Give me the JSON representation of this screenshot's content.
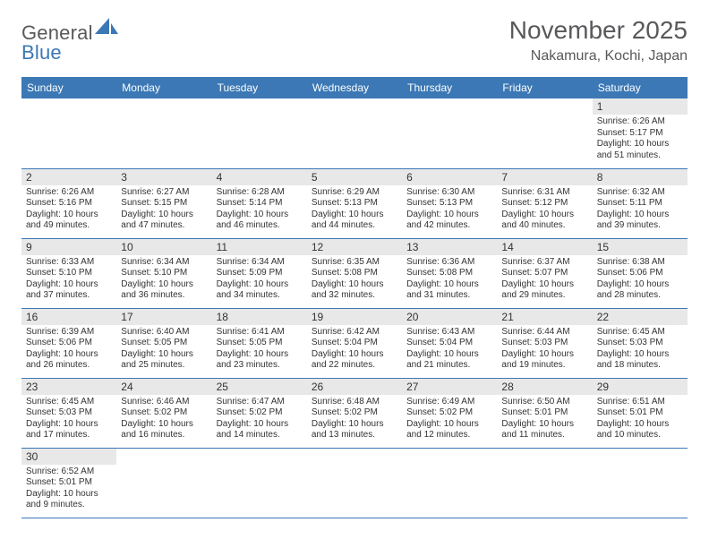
{
  "logo": {
    "part1": "General",
    "part2": "Blue"
  },
  "title": "November 2025",
  "location": "Nakamura, Kochi, Japan",
  "colors": {
    "header_bar": "#3b78b5",
    "daynum_bg": "#e8e8e8",
    "text": "#333333",
    "muted": "#58595b"
  },
  "dayNames": [
    "Sunday",
    "Monday",
    "Tuesday",
    "Wednesday",
    "Thursday",
    "Friday",
    "Saturday"
  ],
  "weeks": [
    [
      null,
      null,
      null,
      null,
      null,
      null,
      {
        "n": "1",
        "sr": "Sunrise: 6:26 AM",
        "ss": "Sunset: 5:17 PM",
        "d1": "Daylight: 10 hours",
        "d2": "and 51 minutes."
      }
    ],
    [
      {
        "n": "2",
        "sr": "Sunrise: 6:26 AM",
        "ss": "Sunset: 5:16 PM",
        "d1": "Daylight: 10 hours",
        "d2": "and 49 minutes."
      },
      {
        "n": "3",
        "sr": "Sunrise: 6:27 AM",
        "ss": "Sunset: 5:15 PM",
        "d1": "Daylight: 10 hours",
        "d2": "and 47 minutes."
      },
      {
        "n": "4",
        "sr": "Sunrise: 6:28 AM",
        "ss": "Sunset: 5:14 PM",
        "d1": "Daylight: 10 hours",
        "d2": "and 46 minutes."
      },
      {
        "n": "5",
        "sr": "Sunrise: 6:29 AM",
        "ss": "Sunset: 5:13 PM",
        "d1": "Daylight: 10 hours",
        "d2": "and 44 minutes."
      },
      {
        "n": "6",
        "sr": "Sunrise: 6:30 AM",
        "ss": "Sunset: 5:13 PM",
        "d1": "Daylight: 10 hours",
        "d2": "and 42 minutes."
      },
      {
        "n": "7",
        "sr": "Sunrise: 6:31 AM",
        "ss": "Sunset: 5:12 PM",
        "d1": "Daylight: 10 hours",
        "d2": "and 40 minutes."
      },
      {
        "n": "8",
        "sr": "Sunrise: 6:32 AM",
        "ss": "Sunset: 5:11 PM",
        "d1": "Daylight: 10 hours",
        "d2": "and 39 minutes."
      }
    ],
    [
      {
        "n": "9",
        "sr": "Sunrise: 6:33 AM",
        "ss": "Sunset: 5:10 PM",
        "d1": "Daylight: 10 hours",
        "d2": "and 37 minutes."
      },
      {
        "n": "10",
        "sr": "Sunrise: 6:34 AM",
        "ss": "Sunset: 5:10 PM",
        "d1": "Daylight: 10 hours",
        "d2": "and 36 minutes."
      },
      {
        "n": "11",
        "sr": "Sunrise: 6:34 AM",
        "ss": "Sunset: 5:09 PM",
        "d1": "Daylight: 10 hours",
        "d2": "and 34 minutes."
      },
      {
        "n": "12",
        "sr": "Sunrise: 6:35 AM",
        "ss": "Sunset: 5:08 PM",
        "d1": "Daylight: 10 hours",
        "d2": "and 32 minutes."
      },
      {
        "n": "13",
        "sr": "Sunrise: 6:36 AM",
        "ss": "Sunset: 5:08 PM",
        "d1": "Daylight: 10 hours",
        "d2": "and 31 minutes."
      },
      {
        "n": "14",
        "sr": "Sunrise: 6:37 AM",
        "ss": "Sunset: 5:07 PM",
        "d1": "Daylight: 10 hours",
        "d2": "and 29 minutes."
      },
      {
        "n": "15",
        "sr": "Sunrise: 6:38 AM",
        "ss": "Sunset: 5:06 PM",
        "d1": "Daylight: 10 hours",
        "d2": "and 28 minutes."
      }
    ],
    [
      {
        "n": "16",
        "sr": "Sunrise: 6:39 AM",
        "ss": "Sunset: 5:06 PM",
        "d1": "Daylight: 10 hours",
        "d2": "and 26 minutes."
      },
      {
        "n": "17",
        "sr": "Sunrise: 6:40 AM",
        "ss": "Sunset: 5:05 PM",
        "d1": "Daylight: 10 hours",
        "d2": "and 25 minutes."
      },
      {
        "n": "18",
        "sr": "Sunrise: 6:41 AM",
        "ss": "Sunset: 5:05 PM",
        "d1": "Daylight: 10 hours",
        "d2": "and 23 minutes."
      },
      {
        "n": "19",
        "sr": "Sunrise: 6:42 AM",
        "ss": "Sunset: 5:04 PM",
        "d1": "Daylight: 10 hours",
        "d2": "and 22 minutes."
      },
      {
        "n": "20",
        "sr": "Sunrise: 6:43 AM",
        "ss": "Sunset: 5:04 PM",
        "d1": "Daylight: 10 hours",
        "d2": "and 21 minutes."
      },
      {
        "n": "21",
        "sr": "Sunrise: 6:44 AM",
        "ss": "Sunset: 5:03 PM",
        "d1": "Daylight: 10 hours",
        "d2": "and 19 minutes."
      },
      {
        "n": "22",
        "sr": "Sunrise: 6:45 AM",
        "ss": "Sunset: 5:03 PM",
        "d1": "Daylight: 10 hours",
        "d2": "and 18 minutes."
      }
    ],
    [
      {
        "n": "23",
        "sr": "Sunrise: 6:45 AM",
        "ss": "Sunset: 5:03 PM",
        "d1": "Daylight: 10 hours",
        "d2": "and 17 minutes."
      },
      {
        "n": "24",
        "sr": "Sunrise: 6:46 AM",
        "ss": "Sunset: 5:02 PM",
        "d1": "Daylight: 10 hours",
        "d2": "and 16 minutes."
      },
      {
        "n": "25",
        "sr": "Sunrise: 6:47 AM",
        "ss": "Sunset: 5:02 PM",
        "d1": "Daylight: 10 hours",
        "d2": "and 14 minutes."
      },
      {
        "n": "26",
        "sr": "Sunrise: 6:48 AM",
        "ss": "Sunset: 5:02 PM",
        "d1": "Daylight: 10 hours",
        "d2": "and 13 minutes."
      },
      {
        "n": "27",
        "sr": "Sunrise: 6:49 AM",
        "ss": "Sunset: 5:02 PM",
        "d1": "Daylight: 10 hours",
        "d2": "and 12 minutes."
      },
      {
        "n": "28",
        "sr": "Sunrise: 6:50 AM",
        "ss": "Sunset: 5:01 PM",
        "d1": "Daylight: 10 hours",
        "d2": "and 11 minutes."
      },
      {
        "n": "29",
        "sr": "Sunrise: 6:51 AM",
        "ss": "Sunset: 5:01 PM",
        "d1": "Daylight: 10 hours",
        "d2": "and 10 minutes."
      }
    ],
    [
      {
        "n": "30",
        "sr": "Sunrise: 6:52 AM",
        "ss": "Sunset: 5:01 PM",
        "d1": "Daylight: 10 hours",
        "d2": "and 9 minutes."
      },
      null,
      null,
      null,
      null,
      null,
      null
    ]
  ]
}
